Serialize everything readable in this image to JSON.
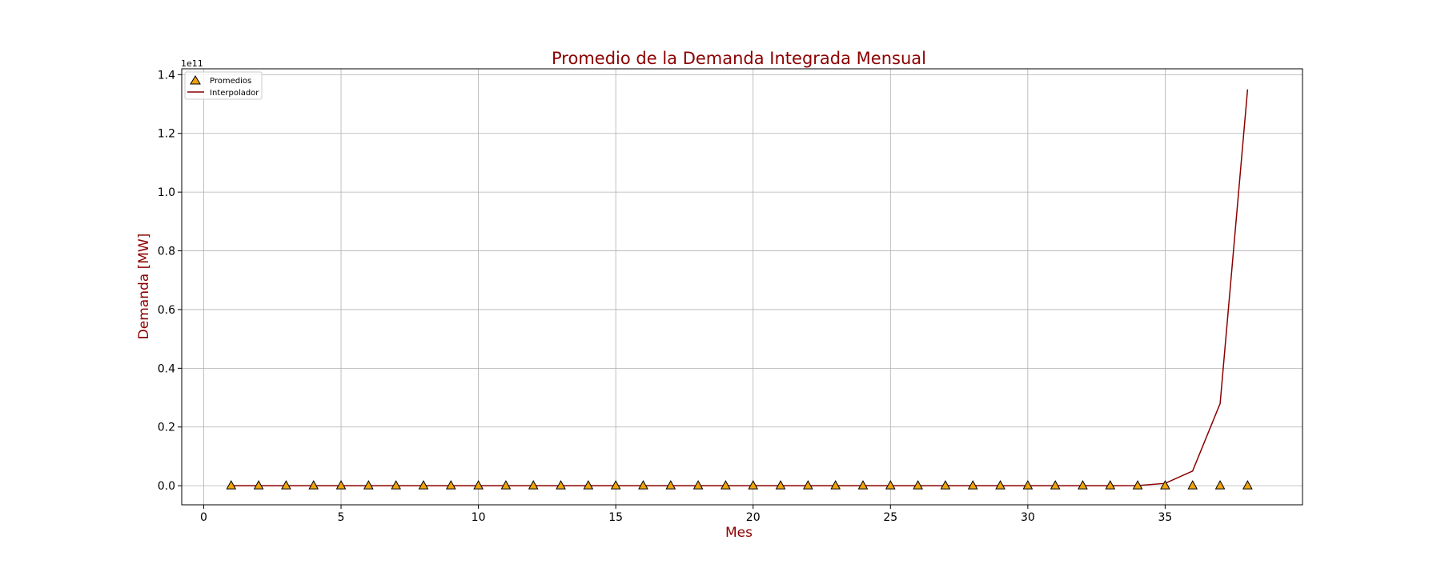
{
  "chart_data": {
    "type": "line",
    "title": "Promedio de la Demanda Integrada Mensual",
    "xlabel": "Mes",
    "ylabel": "Demanda [MW]",
    "y_offset_label": "1e11",
    "y_scale_factor": 100000000000.0,
    "xlim": [
      -0.8,
      40.0
    ],
    "ylim": [
      -6500000000.0,
      142000000000.0
    ],
    "x_ticks": [
      0,
      5,
      10,
      15,
      20,
      25,
      30,
      35
    ],
    "y_ticks": [
      0.0,
      20000000000.0,
      40000000000.0,
      60000000000.0,
      80000000000.0,
      100000000000.0,
      120000000000.0,
      140000000000.0
    ],
    "y_tick_labels": [
      "0.0",
      "0.2",
      "0.4",
      "0.6",
      "0.8",
      "1.0",
      "1.2",
      "1.4"
    ],
    "grid": true,
    "legend_position": "top-left",
    "colors": {
      "title": "#8b0000",
      "axis_label": "#8b0000",
      "line": "#8b0000",
      "marker_fill": "#f0a30a",
      "marker_edge": "#000000",
      "grid": "#b0b0b0"
    },
    "series": [
      {
        "name": "Promedios",
        "style": "markers",
        "marker": "triangle",
        "x": [
          1,
          2,
          3,
          4,
          5,
          6,
          7,
          8,
          9,
          10,
          11,
          12,
          13,
          14,
          15,
          16,
          17,
          18,
          19,
          20,
          21,
          22,
          23,
          24,
          25,
          26,
          27,
          28,
          29,
          30,
          31,
          32,
          33,
          34,
          35,
          36,
          37,
          38
        ],
        "y": [
          0,
          0,
          0,
          0,
          0,
          0,
          0,
          0,
          0,
          0,
          0,
          0,
          0,
          0,
          0,
          0,
          0,
          0,
          0,
          0,
          0,
          0,
          0,
          0,
          0,
          0,
          0,
          0,
          0,
          0,
          0,
          0,
          0,
          0,
          0,
          0,
          0,
          0
        ]
      },
      {
        "name": "Interpolador",
        "style": "line",
        "x": [
          1,
          2,
          3,
          4,
          5,
          6,
          7,
          8,
          9,
          10,
          11,
          12,
          13,
          14,
          15,
          16,
          17,
          18,
          19,
          20,
          21,
          22,
          23,
          24,
          25,
          26,
          27,
          28,
          29,
          30,
          31,
          32,
          33,
          34,
          35,
          36,
          37,
          38
        ],
        "y": [
          0,
          0,
          0,
          0,
          0,
          0,
          0,
          0,
          0,
          0,
          0,
          0,
          0,
          0,
          0,
          0,
          0,
          0,
          0,
          0,
          0,
          0,
          0,
          0,
          0,
          0,
          0,
          0,
          0,
          0,
          0,
          0,
          0,
          50000000.0,
          800000000.0,
          5000000000.0,
          28000000000.0,
          135000000000.0
        ]
      }
    ]
  }
}
